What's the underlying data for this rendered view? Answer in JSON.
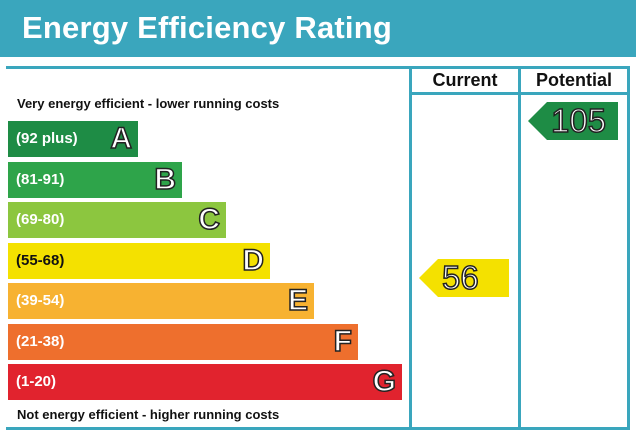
{
  "title": "Energy Efficiency Rating",
  "columns": {
    "current": "Current",
    "potential": "Potential"
  },
  "notes": {
    "top": "Very energy efficient - lower running costs",
    "bottom": "Not energy efficient - higher running costs"
  },
  "colors": {
    "header": "#3aa6bd",
    "current_pointer": "#f4e100",
    "potential_pointer": "#1e8c45"
  },
  "chart_data": {
    "type": "bar",
    "title": "Energy Efficiency Rating",
    "bands": [
      {
        "letter": "A",
        "range": "(92 plus)",
        "color": "#1e8c45"
      },
      {
        "letter": "B",
        "range": "(81-91)",
        "color": "#2ea44a"
      },
      {
        "letter": "C",
        "range": "(69-80)",
        "color": "#8cc63f"
      },
      {
        "letter": "D",
        "range": "(55-68)",
        "color": "#f4e100"
      },
      {
        "letter": "E",
        "range": "(39-54)",
        "color": "#f7b231"
      },
      {
        "letter": "F",
        "range": "(21-38)",
        "color": "#ee6f2d"
      },
      {
        "letter": "G",
        "range": "(1-20)",
        "color": "#e1232e"
      }
    ],
    "current": {
      "value": 56,
      "band": "D"
    },
    "potential": {
      "value": 105,
      "band": "A"
    }
  }
}
